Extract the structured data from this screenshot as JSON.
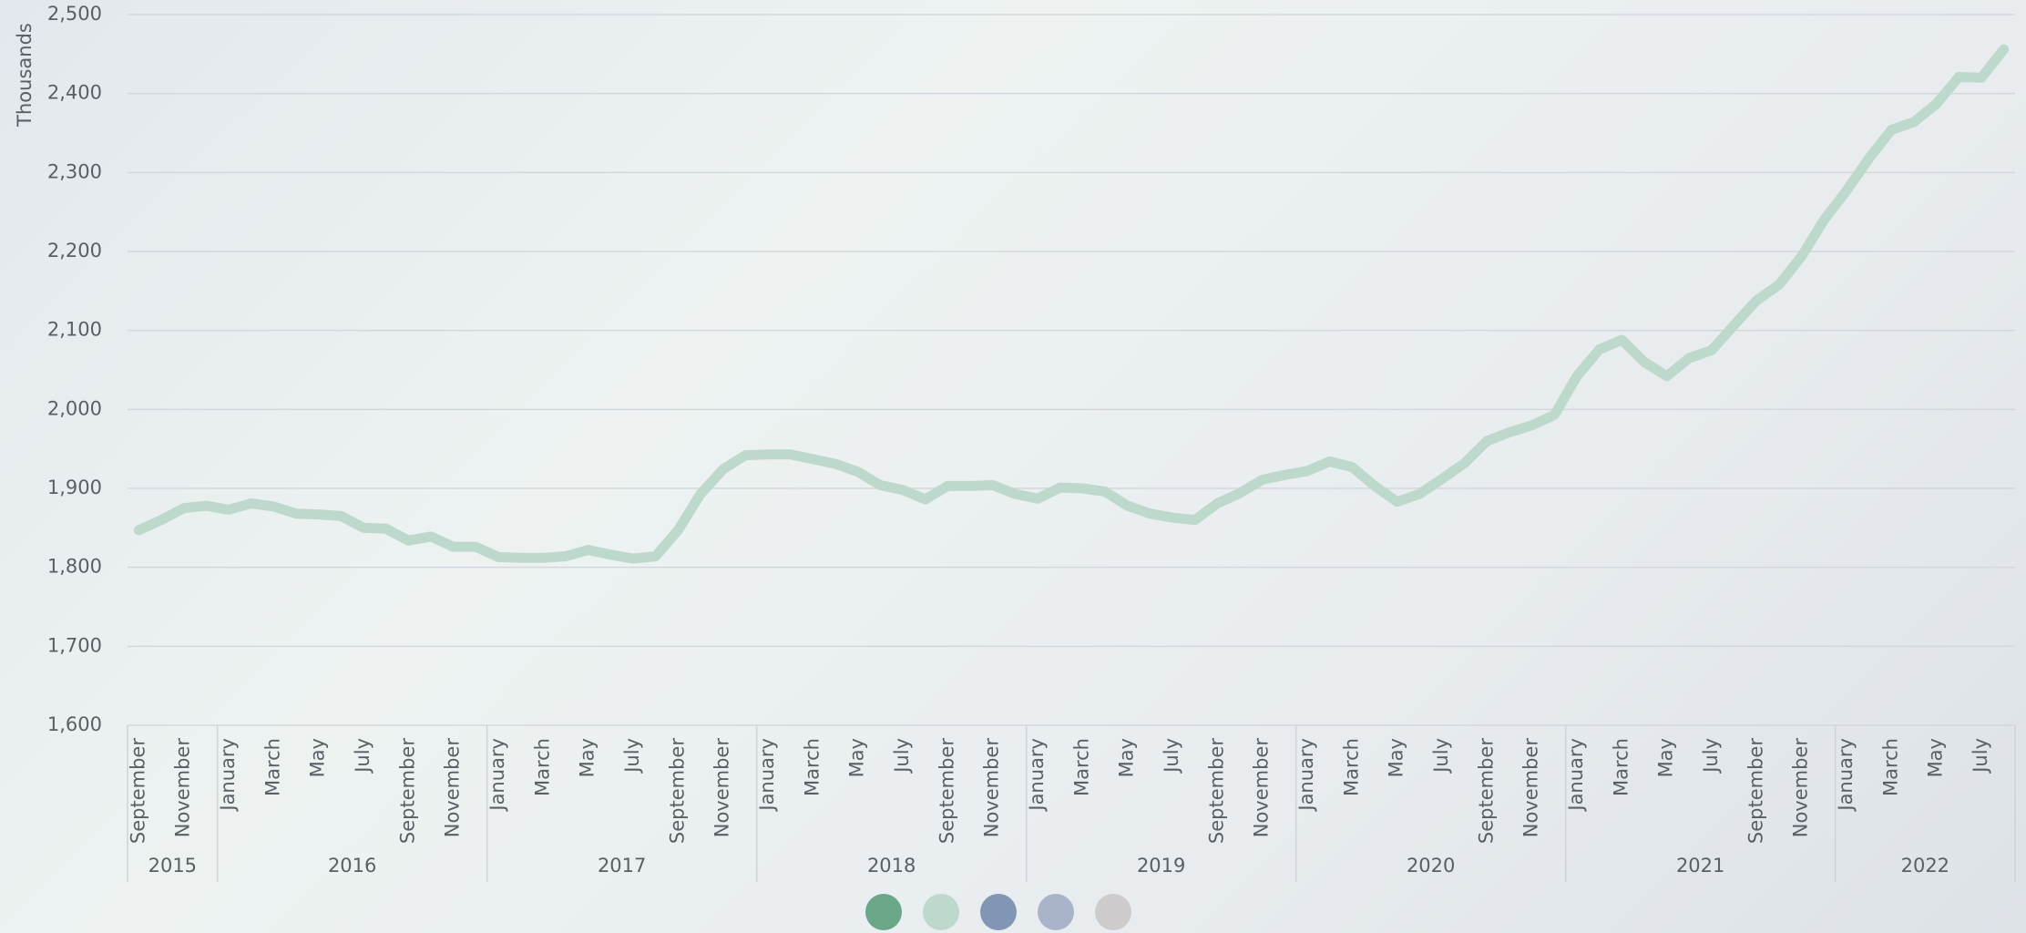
{
  "chart_data": {
    "type": "line",
    "y_label": "Thousands",
    "categories": [
      [
        "2015",
        "September"
      ],
      [
        "2015",
        null
      ],
      [
        "2015",
        "November"
      ],
      [
        "2015",
        null
      ],
      [
        "2016",
        "January"
      ],
      [
        "2016",
        null
      ],
      [
        "2016",
        "March"
      ],
      [
        "2016",
        null
      ],
      [
        "2016",
        "May"
      ],
      [
        "2016",
        null
      ],
      [
        "2016",
        "July"
      ],
      [
        "2016",
        null
      ],
      [
        "2016",
        "September"
      ],
      [
        "2016",
        null
      ],
      [
        "2016",
        "November"
      ],
      [
        "2016",
        null
      ],
      [
        "2017",
        "January"
      ],
      [
        "2017",
        null
      ],
      [
        "2017",
        "March"
      ],
      [
        "2017",
        null
      ],
      [
        "2017",
        "May"
      ],
      [
        "2017",
        null
      ],
      [
        "2017",
        "July"
      ],
      [
        "2017",
        null
      ],
      [
        "2017",
        "September"
      ],
      [
        "2017",
        null
      ],
      [
        "2017",
        "November"
      ],
      [
        "2017",
        null
      ],
      [
        "2018",
        "January"
      ],
      [
        "2018",
        null
      ],
      [
        "2018",
        "March"
      ],
      [
        "2018",
        null
      ],
      [
        "2018",
        "May"
      ],
      [
        "2018",
        null
      ],
      [
        "2018",
        "July"
      ],
      [
        "2018",
        null
      ],
      [
        "2018",
        "September"
      ],
      [
        "2018",
        null
      ],
      [
        "2018",
        "November"
      ],
      [
        "2018",
        null
      ],
      [
        "2019",
        "January"
      ],
      [
        "2019",
        null
      ],
      [
        "2019",
        "March"
      ],
      [
        "2019",
        null
      ],
      [
        "2019",
        "May"
      ],
      [
        "2019",
        null
      ],
      [
        "2019",
        "July"
      ],
      [
        "2019",
        null
      ],
      [
        "2019",
        "September"
      ],
      [
        "2019",
        null
      ],
      [
        "2019",
        "November"
      ],
      [
        "2019",
        null
      ],
      [
        "2020",
        "January"
      ],
      [
        "2020",
        null
      ],
      [
        "2020",
        "March"
      ],
      [
        "2020",
        null
      ],
      [
        "2020",
        "May"
      ],
      [
        "2020",
        null
      ],
      [
        "2020",
        "July"
      ],
      [
        "2020",
        null
      ],
      [
        "2020",
        "September"
      ],
      [
        "2020",
        null
      ],
      [
        "2020",
        "November"
      ],
      [
        "2020",
        null
      ],
      [
        "2021",
        "January"
      ],
      [
        "2021",
        null
      ],
      [
        "2021",
        "March"
      ],
      [
        "2021",
        null
      ],
      [
        "2021",
        "May"
      ],
      [
        "2021",
        null
      ],
      [
        "2021",
        "July"
      ],
      [
        "2021",
        null
      ],
      [
        "2021",
        "September"
      ],
      [
        "2021",
        null
      ],
      [
        "2021",
        "November"
      ],
      [
        "2021",
        null
      ],
      [
        "2022",
        "January"
      ],
      [
        "2022",
        null
      ],
      [
        "2022",
        "March"
      ],
      [
        "2022",
        null
      ],
      [
        "2022",
        "May"
      ],
      [
        "2022",
        null
      ],
      [
        "2022",
        "July"
      ],
      [
        "2022",
        null
      ]
    ],
    "series": [
      {
        "color": "#bcd9cb",
        "values": [
          1847,
          1860,
          1875,
          1878,
          1873,
          1881,
          1877,
          1868,
          1867,
          1865,
          1850,
          1849,
          1834,
          1839,
          1826,
          1826,
          1813,
          1812,
          1812,
          1814,
          1822,
          1816,
          1811,
          1814,
          1847,
          1893,
          1924,
          1942,
          1943,
          1943,
          1937,
          1931,
          1921,
          1904,
          1898,
          1886,
          1903,
          1903,
          1904,
          1893,
          1887,
          1901,
          1900,
          1896,
          1878,
          1868,
          1863,
          1860,
          1881,
          1894,
          1911,
          1917,
          1922,
          1934,
          1927,
          1903,
          1883,
          1893,
          1912,
          1932,
          1960,
          1971,
          1980,
          1993,
          2042,
          2076,
          2088,
          2060,
          2042,
          2065,
          2075,
          2107,
          2138,
          2158,
          2194,
          2240,
          2277,
          2318,
          2354,
          2364,
          2387,
          2421,
          2420,
          2456
        ]
      }
    ],
    "ylim": [
      1600,
      2500
    ],
    "yticks": [
      {
        "value": 1600,
        "label": "1,600"
      },
      {
        "value": 1700,
        "label": "1,700"
      },
      {
        "value": 1800,
        "label": "1,800"
      },
      {
        "value": 1900,
        "label": "1,900"
      },
      {
        "value": 2000,
        "label": "2,000"
      },
      {
        "value": 2100,
        "label": "2,100"
      },
      {
        "value": 2200,
        "label": "2,200"
      },
      {
        "value": 2300,
        "label": "2,300"
      },
      {
        "value": 2400,
        "label": "2,400"
      },
      {
        "value": 2500,
        "label": "2,500"
      }
    ],
    "grid": true,
    "legend_colors": [
      "#6aa789",
      "#bcd9cb",
      "#8096b4",
      "#a9b4cb",
      "#cdcbcb"
    ]
  }
}
